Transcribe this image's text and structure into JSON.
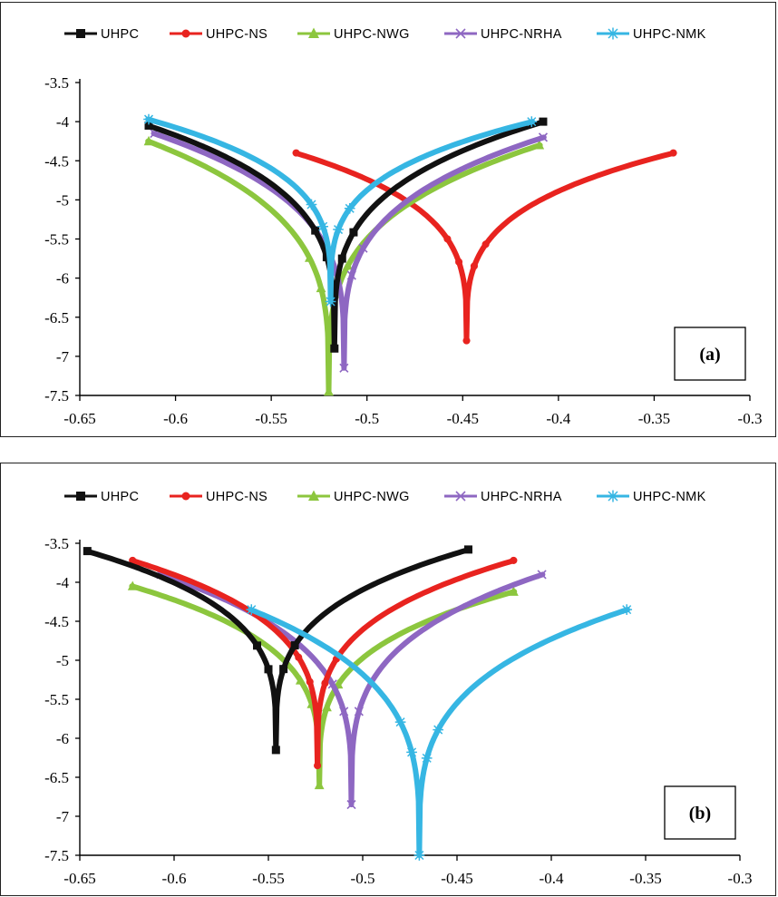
{
  "legend": {
    "items": [
      {
        "label": "UHPC",
        "color": "#111111",
        "marker": "square"
      },
      {
        "label": "UHPC-NS",
        "color": "#e8231f",
        "marker": "dot"
      },
      {
        "label": "UHPC-NWG",
        "color": "#8cc63e",
        "marker": "triangle"
      },
      {
        "label": "UHPC-NRHA",
        "color": "#8e67c2",
        "marker": "x"
      },
      {
        "label": "UHPC-NMK",
        "color": "#36b6e3",
        "marker": "star"
      }
    ]
  },
  "chart_data": [
    {
      "type": "line",
      "panel_label": "(a)",
      "xlim": [
        -0.65,
        -0.3
      ],
      "ylim": [
        -7.5,
        -3.5
      ],
      "x_ticks": [
        "-0.65",
        "-0.6",
        "-0.55",
        "-0.5",
        "-0.45",
        "-0.4",
        "-0.35",
        "-0.3"
      ],
      "y_ticks": [
        "-3.5",
        "-4",
        "-4.5",
        "-5",
        "-5.5",
        "-6",
        "-6.5",
        "-7",
        "-7.5"
      ],
      "series": [
        {
          "name": "UHPC",
          "ecorr": -0.517,
          "min": -6.9,
          "start": [
            -0.614,
            -4.05
          ],
          "end": [
            -0.408,
            -4.0
          ]
        },
        {
          "name": "UHPC-NS",
          "ecorr": -0.448,
          "min": -6.8,
          "start": [
            -0.537,
            -4.4
          ],
          "end": [
            -0.34,
            -4.4
          ]
        },
        {
          "name": "UHPC-NWG",
          "ecorr": -0.52,
          "min": -7.45,
          "start": [
            -0.614,
            -4.25
          ],
          "end": [
            -0.41,
            -4.3
          ]
        },
        {
          "name": "UHPC-NRHA",
          "ecorr": -0.512,
          "min": -7.15,
          "start": [
            -0.611,
            -4.15
          ],
          "end": [
            -0.408,
            -4.2
          ]
        },
        {
          "name": "UHPC-NMK",
          "ecorr": -0.519,
          "min": -6.3,
          "start": [
            -0.614,
            -3.97
          ],
          "end": [
            -0.414,
            -4.0
          ]
        }
      ]
    },
    {
      "type": "line",
      "panel_label": "(b)",
      "xlim": [
        -0.65,
        -0.3
      ],
      "ylim": [
        -7.5,
        -3.5
      ],
      "x_ticks": [
        "-0.65",
        "-0.6",
        "-0.55",
        "-0.5",
        "-0.45",
        "-0.4",
        "-0.35",
        "-0.3"
      ],
      "y_ticks": [
        "-3.5",
        "-4",
        "-4.5",
        "-5",
        "-5.5",
        "-6",
        "-6.5",
        "-7",
        "-7.5"
      ],
      "series": [
        {
          "name": "UHPC",
          "ecorr": -0.546,
          "min": -6.15,
          "start": [
            -0.646,
            -3.6
          ],
          "end": [
            -0.444,
            -3.58
          ]
        },
        {
          "name": "UHPC-NS",
          "ecorr": -0.524,
          "min": -6.35,
          "start": [
            -0.622,
            -3.72
          ],
          "end": [
            -0.42,
            -3.72
          ]
        },
        {
          "name": "UHPC-NWG",
          "ecorr": -0.523,
          "min": -6.6,
          "start": [
            -0.622,
            -4.05
          ],
          "end": [
            -0.42,
            -4.12
          ]
        },
        {
          "name": "UHPC-NRHA",
          "ecorr": -0.506,
          "min": -6.85,
          "start": [
            -0.607,
            -3.9
          ],
          "end": [
            -0.405,
            -3.9
          ]
        },
        {
          "name": "UHPC-NMK",
          "ecorr": -0.47,
          "min": -7.5,
          "start": [
            -0.559,
            -4.35
          ],
          "end": [
            -0.36,
            -4.35
          ]
        }
      ]
    }
  ]
}
